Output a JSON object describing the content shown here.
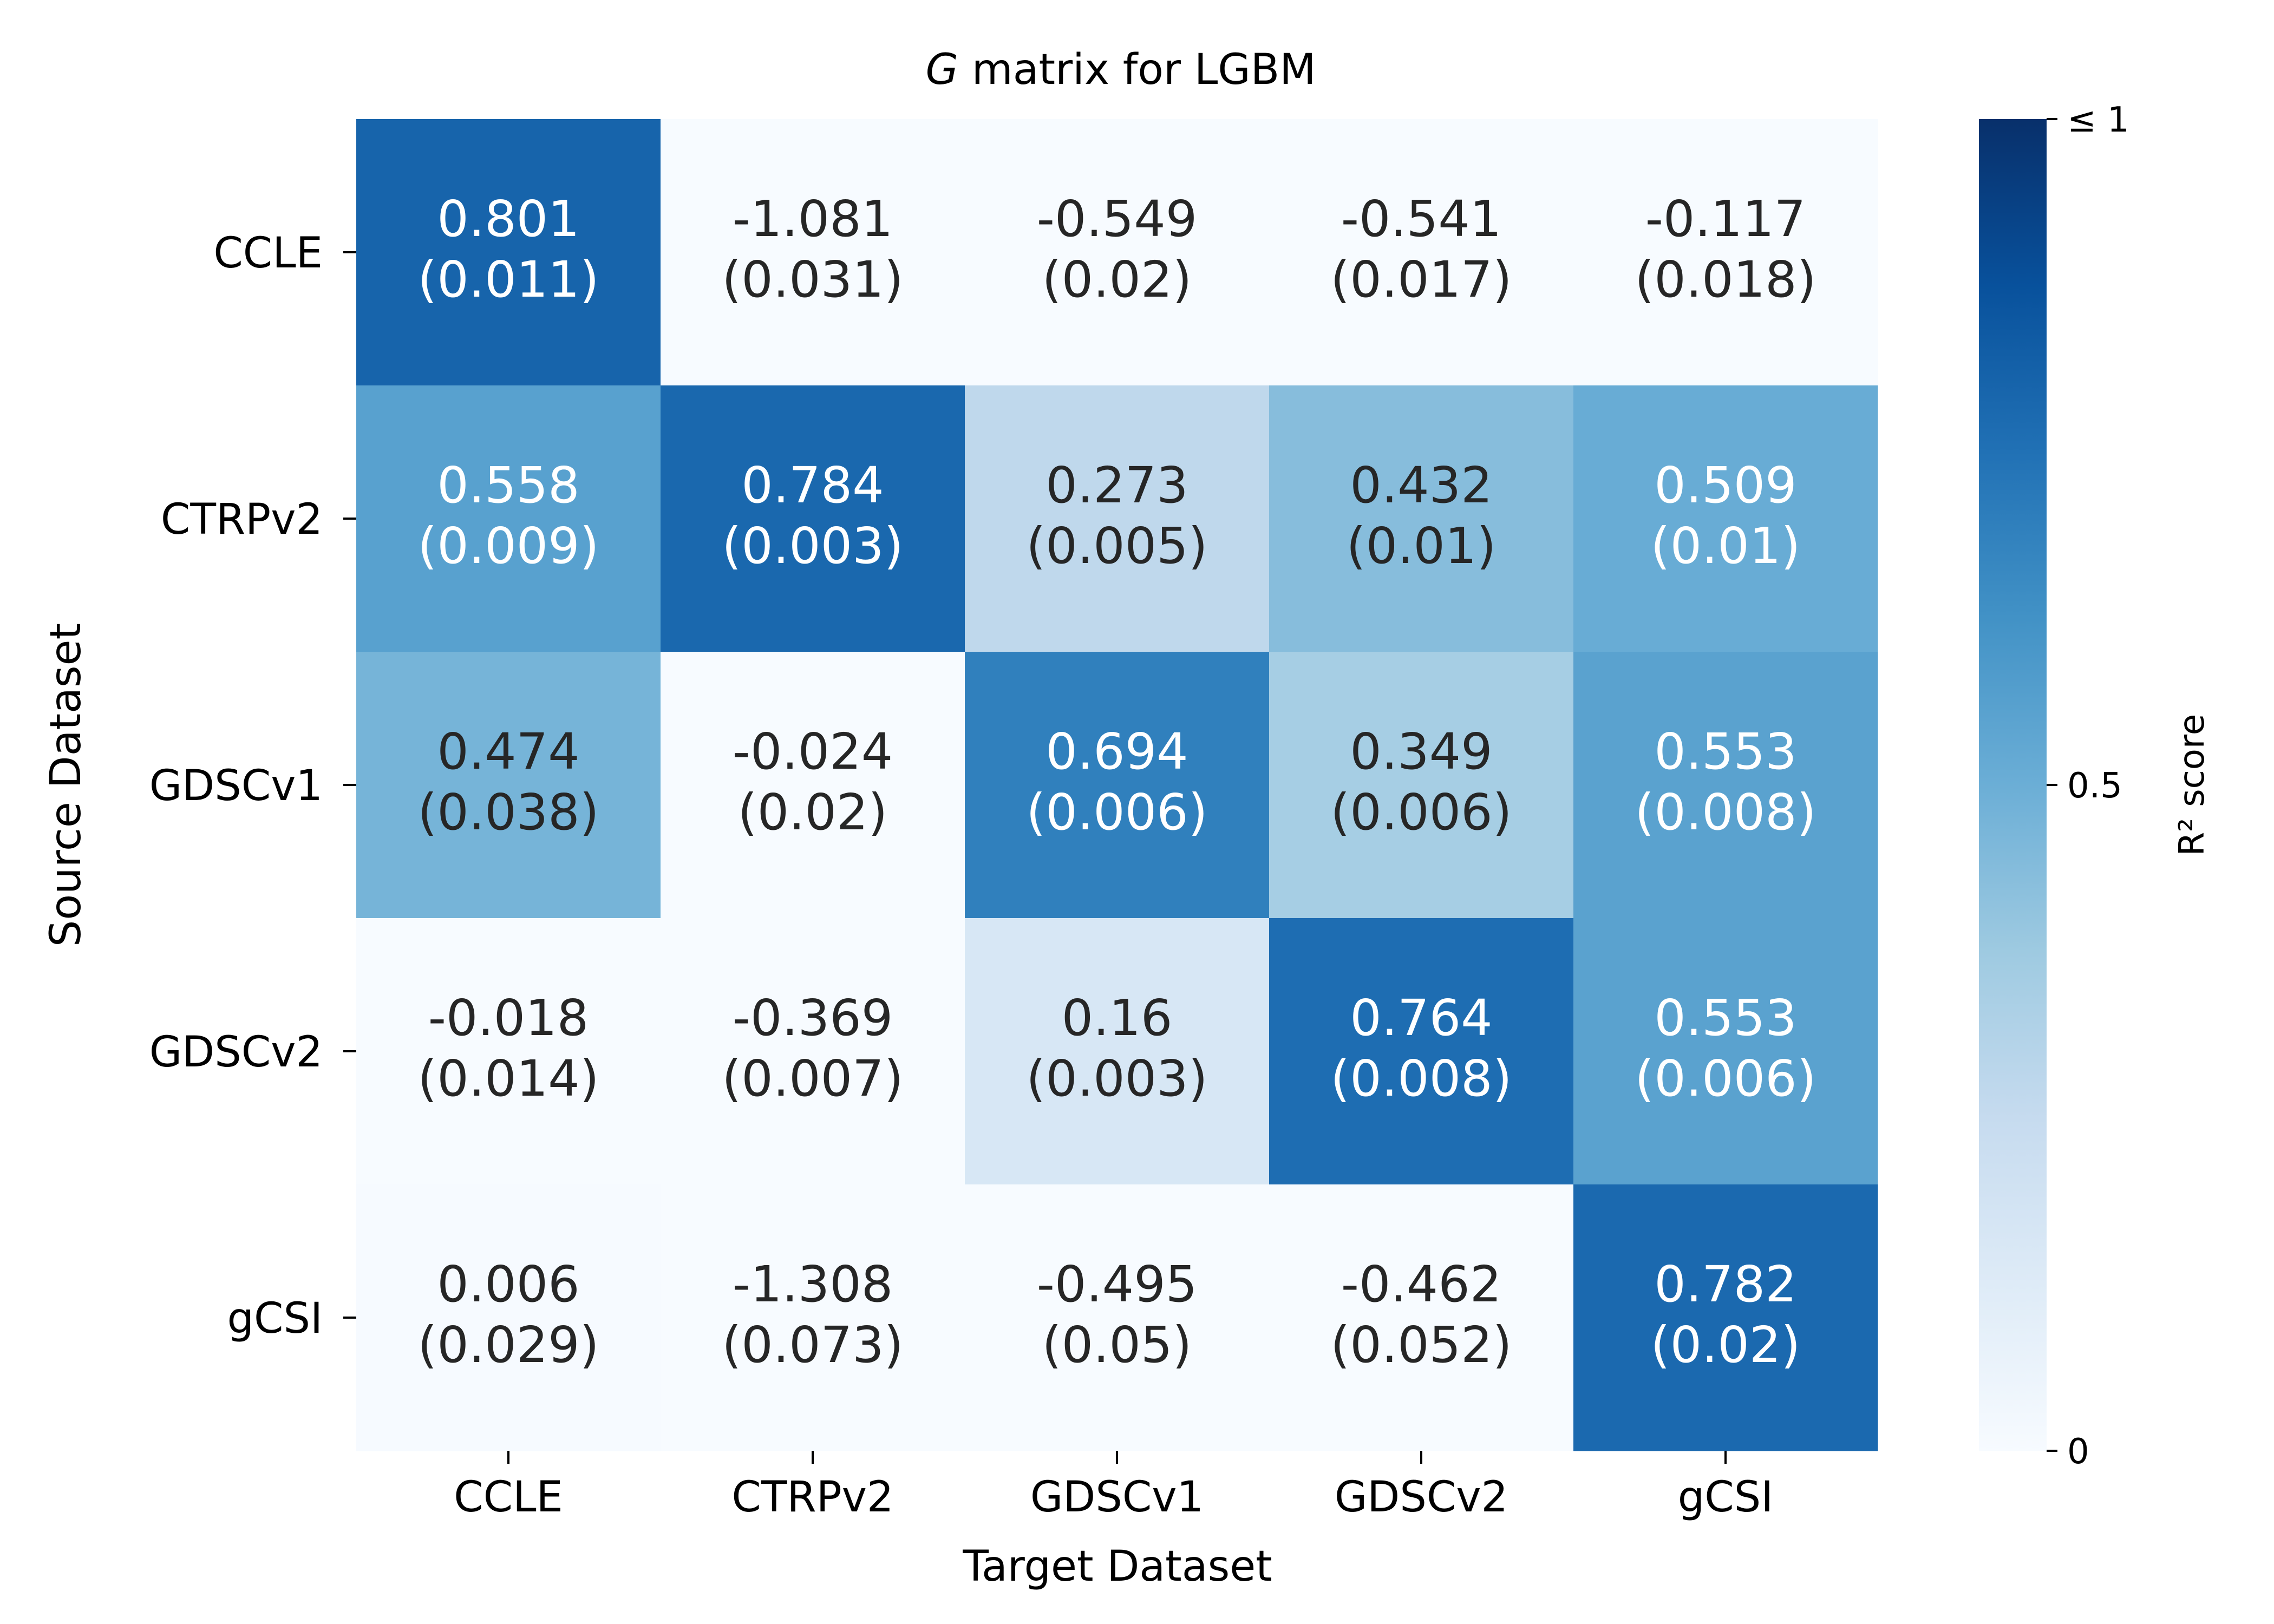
{
  "chart_data": {
    "type": "heatmap",
    "title_italic": "G",
    "title_rest": " matrix for LGBM",
    "xlabel": "Target Dataset",
    "ylabel": "Source Dataset",
    "x_categories": [
      "CCLE",
      "CTRPv2",
      "GDSCv1",
      "GDSCv2",
      "gCSI"
    ],
    "y_categories": [
      "CCLE",
      "CTRPv2",
      "GDSCv1",
      "GDSCv2",
      "gCSI"
    ],
    "values": [
      [
        0.801,
        -1.081,
        -0.549,
        -0.541,
        -0.117
      ],
      [
        0.558,
        0.784,
        0.273,
        0.432,
        0.509
      ],
      [
        0.474,
        -0.024,
        0.694,
        0.349,
        0.553
      ],
      [
        -0.018,
        -0.369,
        0.16,
        0.764,
        0.553
      ],
      [
        0.006,
        -1.308,
        -0.495,
        -0.462,
        0.782
      ]
    ],
    "stds": [
      [
        "0.011",
        "0.031",
        "0.02",
        "0.017",
        "0.018"
      ],
      [
        "0.009",
        "0.003",
        "0.005",
        "0.01",
        "0.01"
      ],
      [
        "0.038",
        "0.02",
        "0.006",
        "0.006",
        "0.008"
      ],
      [
        "0.014",
        "0.007",
        "0.003",
        "0.008",
        "0.006"
      ],
      [
        "0.029",
        "0.073",
        "0.05",
        "0.052",
        "0.02"
      ]
    ],
    "colorbar": {
      "label": "R² score",
      "range": [
        0,
        1
      ],
      "ticks": [
        {
          "value": 0,
          "label": "0"
        },
        {
          "value": 0.5,
          "label": "0.5"
        },
        {
          "value": 1,
          "label": "≤ 1"
        }
      ],
      "colormap": "Blues"
    },
    "text_colors": {
      "light": "#ffffff",
      "dark": "#262626"
    }
  }
}
